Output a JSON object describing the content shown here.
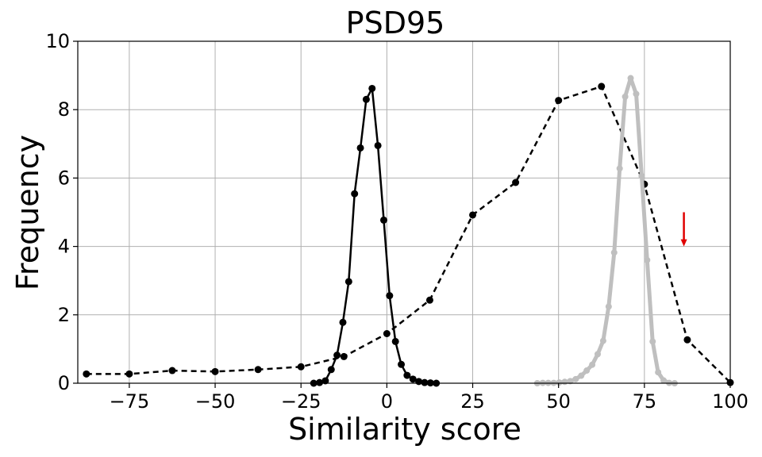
{
  "chart_data": {
    "type": "line",
    "title": "PSD95",
    "xlabel": "Similarity score",
    "ylabel": "Frequency",
    "xlim": [
      -90,
      100
    ],
    "ylim": [
      0,
      10
    ],
    "xticks": [
      -75,
      -50,
      -25,
      0,
      25,
      50,
      75,
      100
    ],
    "xtick_labels": [
      "−75",
      "−50",
      "−25",
      "0",
      "25",
      "50",
      "75",
      "100"
    ],
    "yticks": [
      0,
      2,
      4,
      6,
      8,
      10
    ],
    "ytick_labels": [
      "0",
      "2",
      "4",
      "6",
      "8",
      "10"
    ],
    "grid": true,
    "series": [
      {
        "style": "solid",
        "color": "#000000",
        "linewidth": 2.5,
        "marker": "circle",
        "x": [
          -21.3,
          -19.6,
          -17.9,
          -16.2,
          -14.5,
          -12.8,
          -11.1,
          -9.4,
          -7.7,
          -6.0,
          -4.3,
          -2.6,
          -0.9,
          0.8,
          2.5,
          4.2,
          5.9,
          7.6,
          9.3,
          11.0,
          12.7,
          14.4
        ],
        "y": [
          0.0,
          0.02,
          0.07,
          0.4,
          0.82,
          1.78,
          2.97,
          5.54,
          6.88,
          8.3,
          8.62,
          6.95,
          4.77,
          2.56,
          1.22,
          0.55,
          0.23,
          0.12,
          0.05,
          0.02,
          0.01,
          0.0
        ]
      },
      {
        "style": "dashed",
        "color": "#000000",
        "linewidth": 2.5,
        "marker": "circle",
        "x": [
          -87.5,
          -75.0,
          -62.5,
          -50.0,
          -37.5,
          -25.0,
          -12.5,
          0.0,
          12.5,
          25.0,
          37.5,
          50.0,
          62.5,
          75.0,
          87.5,
          100.0
        ],
        "y": [
          0.27,
          0.27,
          0.37,
          0.34,
          0.4,
          0.48,
          0.78,
          1.45,
          2.43,
          4.92,
          5.87,
          8.27,
          8.68,
          5.82,
          1.27,
          0.02
        ]
      },
      {
        "style": "solid",
        "color": "#bfbfbf",
        "linewidth": 5,
        "marker": "circle",
        "x": [
          43.8,
          45.4,
          47.0,
          48.6,
          50.2,
          51.8,
          53.4,
          55.0,
          56.6,
          58.2,
          59.8,
          61.4,
          63.0,
          64.6,
          66.2,
          67.8,
          69.4,
          71.0,
          72.6,
          74.2,
          75.8,
          77.4,
          79.0,
          80.6,
          82.2,
          83.8
        ],
        "y": [
          0.0,
          0.01,
          0.01,
          0.01,
          0.02,
          0.04,
          0.06,
          0.12,
          0.22,
          0.37,
          0.54,
          0.85,
          1.24,
          2.24,
          3.82,
          6.28,
          8.38,
          8.92,
          8.46,
          6.06,
          3.6,
          1.22,
          0.32,
          0.08,
          0.01,
          0.0
        ]
      }
    ],
    "annotations": [
      {
        "type": "arrow",
        "color": "#e00000",
        "x": 86.5,
        "y_start": 5.0,
        "y_end": 4.0
      }
    ]
  }
}
